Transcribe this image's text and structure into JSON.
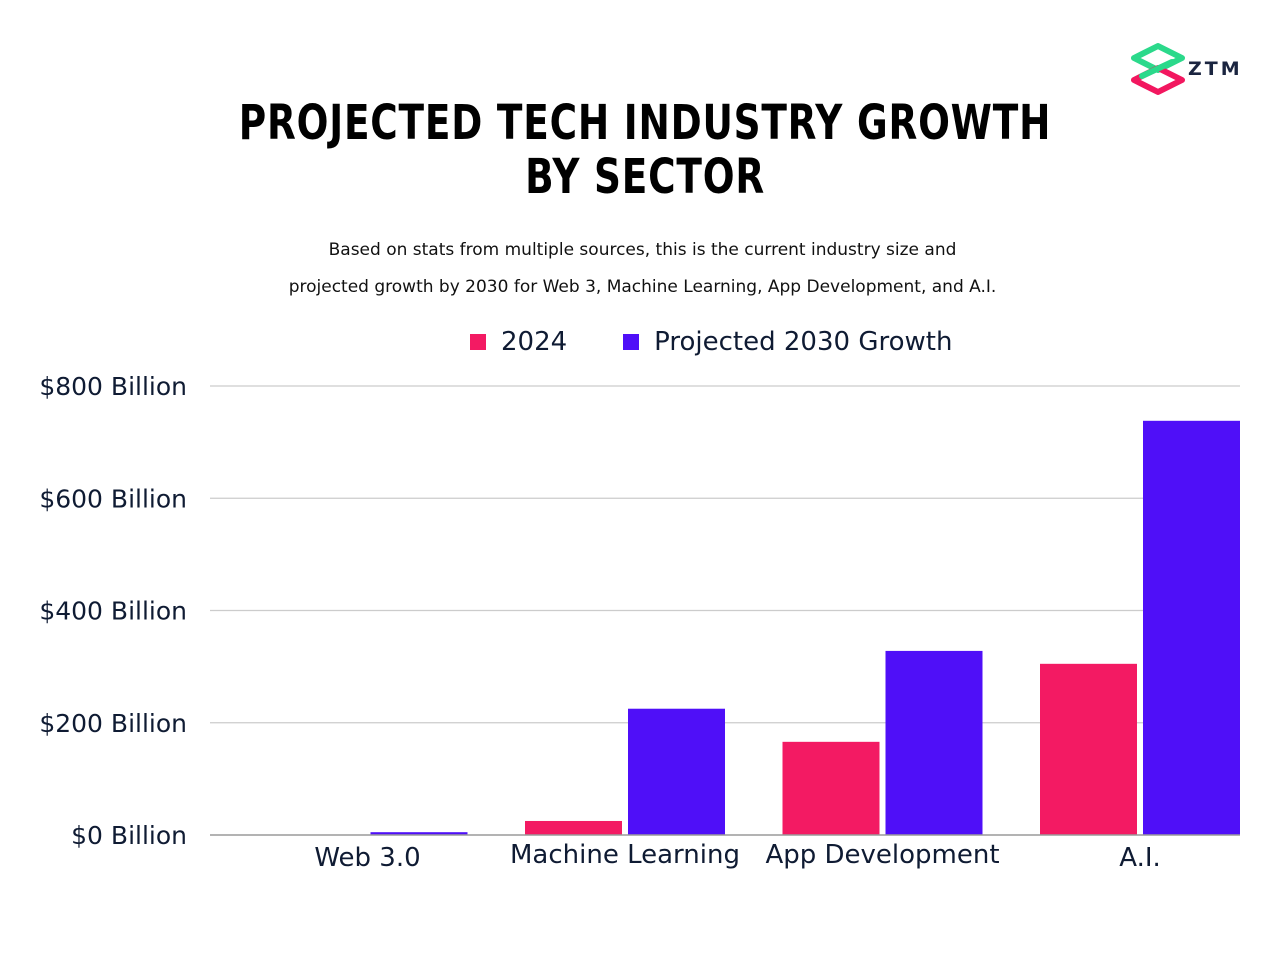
{
  "brand": {
    "logo_text": "ZTM",
    "colors": {
      "green": "#2bd98b",
      "pink": "#f2175f"
    }
  },
  "colors": {
    "series_2024": "#f31a63",
    "series_2030": "#4f0ff8",
    "grid": "#cccccc",
    "axis": "#9a9a9a",
    "text": "#0f1b33"
  },
  "chart_data": {
    "type": "bar",
    "title": [
      "PROJECTED TECH INDUSTRY GROWTH",
      "BY SECTOR"
    ],
    "subtitle": [
      "Based on stats from multiple sources, this is the current industry size and",
      "projected growth by 2030 for Web 3, Machine Learning, App Development, and A.I."
    ],
    "categories": [
      "Web 3.0",
      "Machine Learning",
      "App Development",
      "A.I."
    ],
    "series": [
      {
        "name": "2024",
        "values": [
          0,
          25,
          166,
          305
        ]
      },
      {
        "name": "Projected 2030 Growth",
        "values": [
          5,
          225,
          328,
          738
        ]
      }
    ],
    "y_ticks": [
      0,
      200,
      400,
      600,
      800
    ],
    "y_tick_labels": [
      "$0 Billion",
      "$200 Billion",
      "$400 Billion",
      "$600 Billion",
      "$800 Billion"
    ],
    "ylim": [
      0,
      800
    ],
    "xlabel": "",
    "ylabel": "",
    "grid": true,
    "legend": "top"
  }
}
